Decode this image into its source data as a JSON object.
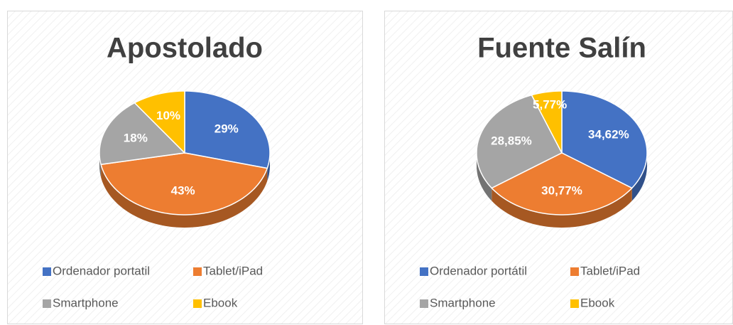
{
  "chart_data": [
    {
      "type": "pie",
      "title": "Apostolado",
      "categories": [
        "Ordenador portatil",
        "Tablet/iPad",
        "Smartphone",
        "Ebook"
      ],
      "values": [
        29,
        43,
        18,
        10
      ],
      "value_labels": [
        "29%",
        "43%",
        "18%",
        "10%"
      ],
      "colors": [
        "#4472c4",
        "#ed7d31",
        "#a5a5a5",
        "#ffc000"
      ],
      "legend": "bottom"
    },
    {
      "type": "pie",
      "title": "Fuente Salín",
      "categories": [
        "Ordenador portátil",
        "Tablet/iPad",
        "Smartphone",
        "Ebook"
      ],
      "values": [
        34.62,
        30.77,
        28.85,
        5.77
      ],
      "value_labels": [
        "34,62%",
        "30,77%",
        "28,85%",
        "5,77%"
      ],
      "colors": [
        "#4472c4",
        "#ed7d31",
        "#a5a5a5",
        "#ffc000"
      ],
      "legend": "bottom"
    }
  ]
}
